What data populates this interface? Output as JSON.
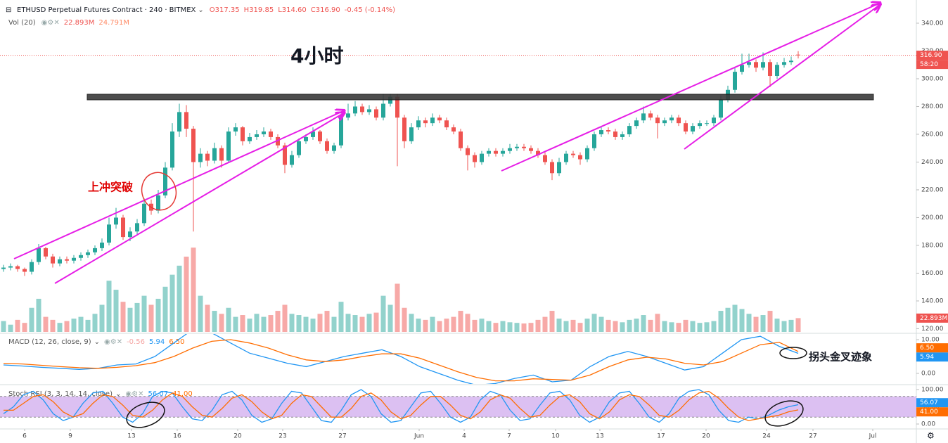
{
  "chart_data": {
    "type": "candlestick",
    "title": "ETHUSD Perpetual Futures Contract · 240 · BITMEX",
    "ohlc_legend": [
      "O317.35",
      "H319.85",
      "L314.60",
      "C316.90",
      "-0.45 (-0.14%)"
    ],
    "annotations": [
      "4小时",
      "上冲突破",
      "拐头金叉迹象"
    ],
    "x_labels": [
      "6",
      "9",
      "13",
      "16",
      "20",
      "23",
      "27",
      "Jun",
      "4",
      "7",
      "10",
      "13",
      "17",
      "20",
      "24",
      "27",
      "Jul"
    ],
    "up_color": "#26a69a",
    "down_color": "#ef5350",
    "candles": [
      [
        163,
        166,
        161,
        164
      ],
      [
        164,
        167,
        162,
        165
      ],
      [
        165,
        166,
        161,
        163
      ],
      [
        163,
        164,
        158,
        161
      ],
      [
        161,
        170,
        159,
        168
      ],
      [
        168,
        181,
        166,
        178
      ],
      [
        178,
        179,
        170,
        172
      ],
      [
        172,
        174,
        164,
        167
      ],
      [
        167,
        172,
        165,
        170
      ],
      [
        170,
        172,
        167,
        169
      ],
      [
        169,
        173,
        167,
        171
      ],
      [
        171,
        175,
        169,
        173
      ],
      [
        173,
        177,
        171,
        175
      ],
      [
        175,
        180,
        173,
        178
      ],
      [
        178,
        185,
        176,
        182
      ],
      [
        182,
        200,
        180,
        195
      ],
      [
        195,
        207,
        192,
        200
      ],
      [
        200,
        202,
        184,
        186
      ],
      [
        186,
        193,
        183,
        190
      ],
      [
        190,
        199,
        188,
        196
      ],
      [
        196,
        214,
        194,
        210
      ],
      [
        210,
        213,
        202,
        205
      ],
      [
        205,
        220,
        203,
        216
      ],
      [
        216,
        240,
        214,
        236
      ],
      [
        236,
        268,
        234,
        262
      ],
      [
        262,
        282,
        258,
        276
      ],
      [
        276,
        281,
        258,
        264
      ],
      [
        264,
        266,
        190,
        240
      ],
      [
        240,
        250,
        236,
        246
      ],
      [
        246,
        248,
        237,
        241
      ],
      [
        241,
        254,
        239,
        250
      ],
      [
        250,
        252,
        236,
        241
      ],
      [
        241,
        265,
        240,
        262
      ],
      [
        262,
        268,
        259,
        265
      ],
      [
        265,
        266,
        252,
        255
      ],
      [
        255,
        261,
        253,
        258
      ],
      [
        258,
        263,
        256,
        260
      ],
      [
        260,
        265,
        258,
        262
      ],
      [
        262,
        264,
        256,
        258
      ],
      [
        258,
        260,
        250,
        252
      ],
      [
        252,
        254,
        232,
        238
      ],
      [
        238,
        248,
        236,
        245
      ],
      [
        245,
        257,
        243,
        255
      ],
      [
        255,
        260,
        253,
        258
      ],
      [
        258,
        265,
        256,
        262
      ],
      [
        262,
        263,
        253,
        255
      ],
      [
        255,
        257,
        246,
        248
      ],
      [
        248,
        254,
        246,
        252
      ],
      [
        252,
        275,
        250,
        272
      ],
      [
        272,
        282,
        270,
        275
      ],
      [
        275,
        284,
        273,
        280
      ],
      [
        280,
        282,
        274,
        276
      ],
      [
        276,
        281,
        274,
        278
      ],
      [
        278,
        280,
        270,
        272
      ],
      [
        272,
        289,
        270,
        282
      ],
      [
        282,
        289,
        280,
        287
      ],
      [
        287,
        289,
        237,
        272
      ],
      [
        272,
        274,
        250,
        255
      ],
      [
        255,
        268,
        253,
        265
      ],
      [
        265,
        273,
        263,
        270
      ],
      [
        270,
        272,
        265,
        268
      ],
      [
        268,
        275,
        266,
        272
      ],
      [
        272,
        274,
        268,
        270
      ],
      [
        270,
        272,
        263,
        265
      ],
      [
        265,
        267,
        260,
        262
      ],
      [
        262,
        264,
        248,
        250
      ],
      [
        250,
        252,
        234,
        245
      ],
      [
        245,
        247,
        236,
        240
      ],
      [
        240,
        248,
        238,
        246
      ],
      [
        246,
        250,
        244,
        248
      ],
      [
        248,
        250,
        244,
        246
      ],
      [
        246,
        250,
        244,
        248
      ],
      [
        248,
        253,
        246,
        250
      ],
      [
        250,
        253,
        248,
        251
      ],
      [
        251,
        253,
        248,
        250
      ],
      [
        250,
        252,
        246,
        248
      ],
      [
        248,
        250,
        243,
        245
      ],
      [
        245,
        247,
        238,
        240
      ],
      [
        240,
        242,
        227,
        232
      ],
      [
        232,
        243,
        230,
        240
      ],
      [
        240,
        248,
        238,
        246
      ],
      [
        246,
        248,
        243,
        245
      ],
      [
        245,
        247,
        238,
        242
      ],
      [
        242,
        252,
        240,
        250
      ],
      [
        250,
        262,
        248,
        260
      ],
      [
        260,
        265,
        258,
        263
      ],
      [
        263,
        265,
        260,
        262
      ],
      [
        262,
        264,
        256,
        258
      ],
      [
        258,
        262,
        256,
        260
      ],
      [
        260,
        268,
        258,
        266
      ],
      [
        266,
        272,
        264,
        270
      ],
      [
        270,
        280,
        268,
        275
      ],
      [
        275,
        277,
        270,
        272
      ],
      [
        272,
        274,
        257,
        268
      ],
      [
        268,
        272,
        266,
        270
      ],
      [
        270,
        274,
        268,
        272
      ],
      [
        272,
        274,
        266,
        268
      ],
      [
        268,
        270,
        260,
        262
      ],
      [
        262,
        268,
        260,
        266
      ],
      [
        266,
        270,
        264,
        268
      ],
      [
        268,
        270,
        266,
        268
      ],
      [
        268,
        274,
        266,
        272
      ],
      [
        272,
        288,
        270,
        285
      ],
      [
        285,
        295,
        283,
        292
      ],
      [
        292,
        308,
        290,
        305
      ],
      [
        305,
        318,
        303,
        310
      ],
      [
        310,
        318,
        308,
        312
      ],
      [
        312,
        314,
        305,
        308
      ],
      [
        308,
        319,
        306,
        312
      ],
      [
        312,
        314,
        294,
        302
      ],
      [
        302,
        312,
        300,
        310
      ],
      [
        310,
        315,
        308,
        312
      ],
      [
        312,
        316,
        310,
        313
      ],
      [
        317.35,
        319.85,
        314.6,
        316.9
      ]
    ],
    "ylim": [
      117.7,
      356.7
    ],
    "yticks": [
      {
        "value": 120,
        "label": "120.00"
      },
      {
        "value": 140,
        "label": "140.00"
      },
      {
        "value": 160,
        "label": "160.00"
      },
      {
        "value": 180,
        "label": "180.00"
      },
      {
        "value": 200,
        "label": "200.00"
      },
      {
        "value": 220,
        "label": "220.00"
      },
      {
        "value": 240,
        "label": "240.00"
      },
      {
        "value": 260,
        "label": "260.00"
      },
      {
        "value": 280,
        "label": "280.00"
      },
      {
        "value": 300,
        "label": "300.00"
      },
      {
        "value": 320,
        "label": "320.00"
      },
      {
        "value": 340,
        "label": "340.00"
      }
    ],
    "last_price_label": "316.90",
    "countdown": "58:20",
    "volume": {
      "title": "Vol (20)",
      "legend": [
        "22.893M",
        "24.791M"
      ],
      "ylim": [
        0,
        160
      ],
      "last_label": "22.893M",
      "values": [
        18,
        12,
        20,
        15,
        40,
        55,
        25,
        20,
        15,
        18,
        22,
        25,
        20,
        30,
        45,
        85,
        70,
        50,
        40,
        48,
        60,
        45,
        55,
        75,
        95,
        110,
        125,
        140,
        60,
        45,
        35,
        30,
        40,
        25,
        28,
        22,
        30,
        25,
        28,
        35,
        45,
        30,
        28,
        25,
        22,
        30,
        35,
        25,
        50,
        30,
        28,
        25,
        30,
        32,
        60,
        45,
        80,
        40,
        30,
        22,
        20,
        25,
        18,
        22,
        25,
        35,
        30,
        20,
        22,
        18,
        15,
        18,
        16,
        15,
        14,
        15,
        20,
        25,
        35,
        22,
        18,
        20,
        15,
        22,
        30,
        25,
        20,
        18,
        16,
        20,
        22,
        28,
        20,
        30,
        18,
        16,
        15,
        20,
        18,
        15,
        16,
        18,
        35,
        40,
        45,
        38,
        30,
        25,
        28,
        35,
        22,
        18,
        20,
        22.893
      ]
    },
    "macd": {
      "title": "MACD (12, 26, close, 9)",
      "legend": [
        "-0.56",
        "5.94",
        "6.50"
      ],
      "ylim": [
        -3.33,
        11.88
      ],
      "yticks": [
        {
          "value": 0,
          "label": "0.00"
        },
        {
          "value": 5,
          "label": "5.00"
        },
        {
          "value": 10,
          "label": "10.00"
        }
      ],
      "series": [
        {
          "color": "#2196f3",
          "last_label": "5.94",
          "values": [
            2.5,
            2.2,
            1.8,
            1.5,
            1.2,
            1.5,
            2.5,
            2.8,
            5,
            9,
            13,
            12,
            9,
            6,
            4.5,
            3,
            2,
            3.5,
            5,
            6,
            7,
            5,
            2,
            0,
            -2,
            -3.5,
            -3,
            -1.5,
            -0.5,
            -2.5,
            -2,
            2,
            5,
            6.5,
            5,
            3,
            1,
            2,
            6,
            10,
            11,
            8,
            5.94
          ]
        },
        {
          "color": "#ff6d00",
          "last_label": "6.50",
          "values": [
            3,
            2.8,
            2.4,
            2,
            1.7,
            1.5,
            1.8,
            2.3,
            3.2,
            5,
            7.5,
            9.5,
            10,
            9,
            7.5,
            5.5,
            4,
            3.5,
            4,
            5,
            5.8,
            5.8,
            4.5,
            2.5,
            0.5,
            -1.2,
            -2.2,
            -2.2,
            -1.6,
            -1.8,
            -2,
            -0.5,
            2,
            4,
            4.8,
            4.3,
            3,
            2.5,
            3.5,
            6,
            8.5,
            9.2,
            6.5
          ]
        }
      ]
    },
    "stoch_rsi": {
      "title": "Stoch RSI (3, 3, 14, 14, close)",
      "legend": [
        "56.07",
        "41.00"
      ],
      "ylim": [
        -14.3,
        114.3
      ],
      "yticks": [
        {
          "value": 0,
          "label": "0.00"
        },
        {
          "value": 50,
          "label": "50.00"
        },
        {
          "value": 100,
          "label": "100.00"
        }
      ],
      "bands": [
        20,
        80
      ],
      "band_color": "#dcc0f2",
      "series": [
        {
          "color": "#2196f3",
          "last_label": "56.07",
          "values": [
            30,
            50,
            85,
            95,
            70,
            30,
            10,
            20,
            60,
            90,
            95,
            60,
            20,
            5,
            30,
            80,
            95,
            90,
            50,
            15,
            10,
            40,
            85,
            95,
            70,
            25,
            5,
            15,
            60,
            95,
            90,
            50,
            10,
            5,
            40,
            85,
            100,
            80,
            30,
            5,
            10,
            50,
            90,
            95,
            60,
            20,
            5,
            20,
            70,
            95,
            85,
            40,
            10,
            15,
            55,
            90,
            95,
            70,
            25,
            5,
            20,
            65,
            90,
            95,
            60,
            20,
            5,
            30,
            75,
            95,
            100,
            85,
            40,
            10,
            5,
            20,
            15,
            25,
            40,
            50,
            56.07
          ]
        },
        {
          "color": "#ff6d00",
          "last_label": "41.00",
          "values": [
            40,
            40,
            60,
            80,
            85,
            65,
            35,
            20,
            30,
            60,
            85,
            80,
            55,
            25,
            20,
            40,
            70,
            90,
            80,
            50,
            25,
            20,
            45,
            75,
            85,
            65,
            35,
            15,
            25,
            60,
            85,
            80,
            50,
            20,
            20,
            45,
            80,
            90,
            70,
            35,
            15,
            25,
            55,
            80,
            80,
            55,
            25,
            15,
            35,
            70,
            85,
            75,
            45,
            20,
            25,
            55,
            80,
            85,
            65,
            30,
            15,
            35,
            70,
            85,
            80,
            55,
            25,
            20,
            40,
            70,
            90,
            95,
            75,
            45,
            20,
            10,
            15,
            20,
            25,
            35,
            41
          ]
        }
      ]
    }
  }
}
